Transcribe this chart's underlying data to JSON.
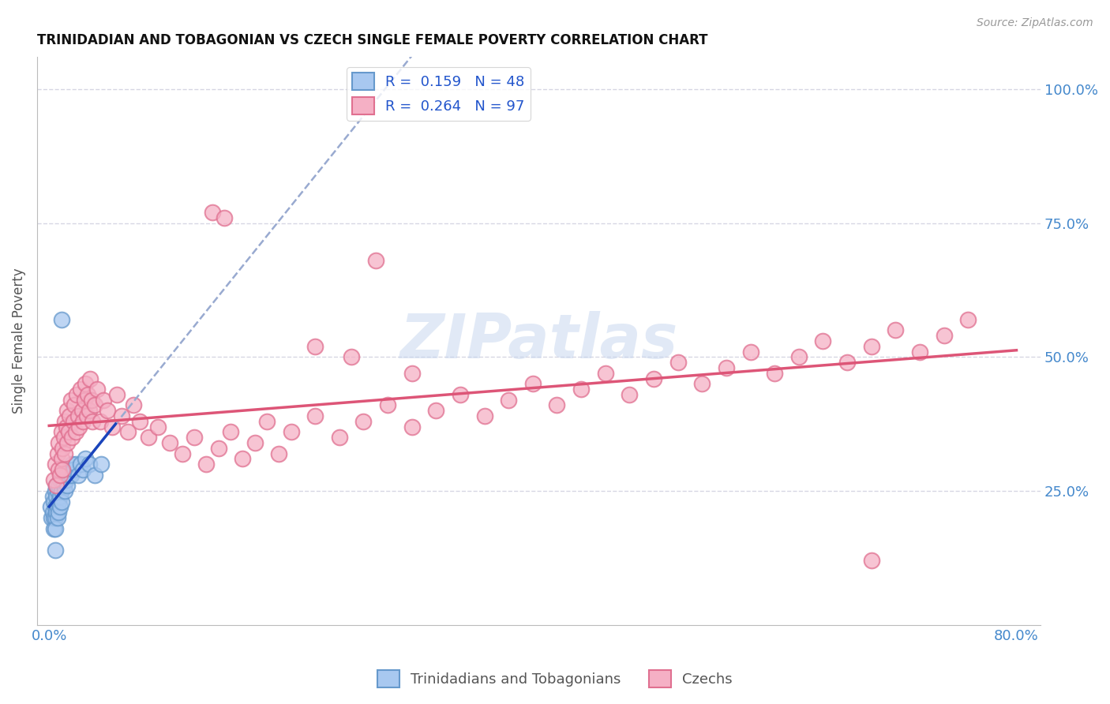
{
  "title": "TRINIDADIAN AND TOBAGONIAN VS CZECH SINGLE FEMALE POVERTY CORRELATION CHART",
  "source": "Source: ZipAtlas.com",
  "ylabel": "Single Female Poverty",
  "watermark": "ZIPatlas",
  "trini_color": "#a8c8f0",
  "czech_color": "#f5b0c5",
  "trini_edge": "#6699cc",
  "czech_edge": "#e07090",
  "trini_line_color": "#1a44bb",
  "czech_line_color": "#dd5577",
  "dashed_line_color": "#99aad0",
  "background_color": "#ffffff",
  "grid_color": "#ccccdd",
  "xlim": [
    -0.01,
    0.82
  ],
  "ylim": [
    0.0,
    1.06
  ],
  "trini_x": [
    0.001,
    0.002,
    0.003,
    0.003,
    0.004,
    0.004,
    0.004,
    0.005,
    0.005,
    0.005,
    0.005,
    0.006,
    0.006,
    0.006,
    0.007,
    0.007,
    0.007,
    0.008,
    0.008,
    0.008,
    0.009,
    0.009,
    0.009,
    0.01,
    0.01,
    0.01,
    0.011,
    0.012,
    0.013,
    0.013,
    0.014,
    0.015,
    0.015,
    0.016,
    0.017,
    0.018,
    0.019,
    0.02,
    0.022,
    0.024,
    0.026,
    0.028,
    0.03,
    0.033,
    0.038,
    0.043,
    0.01,
    0.005
  ],
  "trini_y": [
    0.22,
    0.2,
    0.24,
    0.21,
    0.23,
    0.2,
    0.18,
    0.25,
    0.22,
    0.2,
    0.18,
    0.26,
    0.24,
    0.21,
    0.25,
    0.22,
    0.2,
    0.26,
    0.23,
    0.21,
    0.27,
    0.24,
    0.22,
    0.28,
    0.25,
    0.23,
    0.27,
    0.26,
    0.28,
    0.25,
    0.27,
    0.29,
    0.26,
    0.28,
    0.29,
    0.28,
    0.3,
    0.29,
    0.3,
    0.28,
    0.3,
    0.29,
    0.31,
    0.3,
    0.28,
    0.3,
    0.57,
    0.14
  ],
  "czech_x": [
    0.004,
    0.005,
    0.006,
    0.007,
    0.008,
    0.008,
    0.009,
    0.01,
    0.01,
    0.011,
    0.011,
    0.012,
    0.013,
    0.013,
    0.014,
    0.015,
    0.015,
    0.016,
    0.017,
    0.018,
    0.019,
    0.02,
    0.021,
    0.022,
    0.023,
    0.024,
    0.025,
    0.026,
    0.027,
    0.028,
    0.029,
    0.03,
    0.031,
    0.032,
    0.033,
    0.034,
    0.035,
    0.036,
    0.038,
    0.04,
    0.042,
    0.045,
    0.048,
    0.052,
    0.056,
    0.06,
    0.065,
    0.07,
    0.075,
    0.082,
    0.09,
    0.1,
    0.11,
    0.12,
    0.13,
    0.14,
    0.15,
    0.16,
    0.17,
    0.18,
    0.19,
    0.2,
    0.22,
    0.24,
    0.26,
    0.28,
    0.3,
    0.32,
    0.34,
    0.36,
    0.38,
    0.4,
    0.42,
    0.44,
    0.46,
    0.48,
    0.5,
    0.52,
    0.54,
    0.56,
    0.58,
    0.6,
    0.62,
    0.64,
    0.66,
    0.68,
    0.7,
    0.72,
    0.74,
    0.76,
    0.135,
    0.145,
    0.27,
    0.68,
    0.25,
    0.3,
    0.22
  ],
  "czech_y": [
    0.27,
    0.3,
    0.26,
    0.32,
    0.29,
    0.34,
    0.28,
    0.31,
    0.36,
    0.33,
    0.29,
    0.35,
    0.38,
    0.32,
    0.37,
    0.34,
    0.4,
    0.36,
    0.39,
    0.42,
    0.35,
    0.38,
    0.41,
    0.36,
    0.43,
    0.39,
    0.37,
    0.44,
    0.4,
    0.38,
    0.42,
    0.45,
    0.39,
    0.43,
    0.4,
    0.46,
    0.42,
    0.38,
    0.41,
    0.44,
    0.38,
    0.42,
    0.4,
    0.37,
    0.43,
    0.39,
    0.36,
    0.41,
    0.38,
    0.35,
    0.37,
    0.34,
    0.32,
    0.35,
    0.3,
    0.33,
    0.36,
    0.31,
    0.34,
    0.38,
    0.32,
    0.36,
    0.39,
    0.35,
    0.38,
    0.41,
    0.37,
    0.4,
    0.43,
    0.39,
    0.42,
    0.45,
    0.41,
    0.44,
    0.47,
    0.43,
    0.46,
    0.49,
    0.45,
    0.48,
    0.51,
    0.47,
    0.5,
    0.53,
    0.49,
    0.52,
    0.55,
    0.51,
    0.54,
    0.57,
    0.77,
    0.76,
    0.68,
    0.12,
    0.5,
    0.47,
    0.52
  ]
}
